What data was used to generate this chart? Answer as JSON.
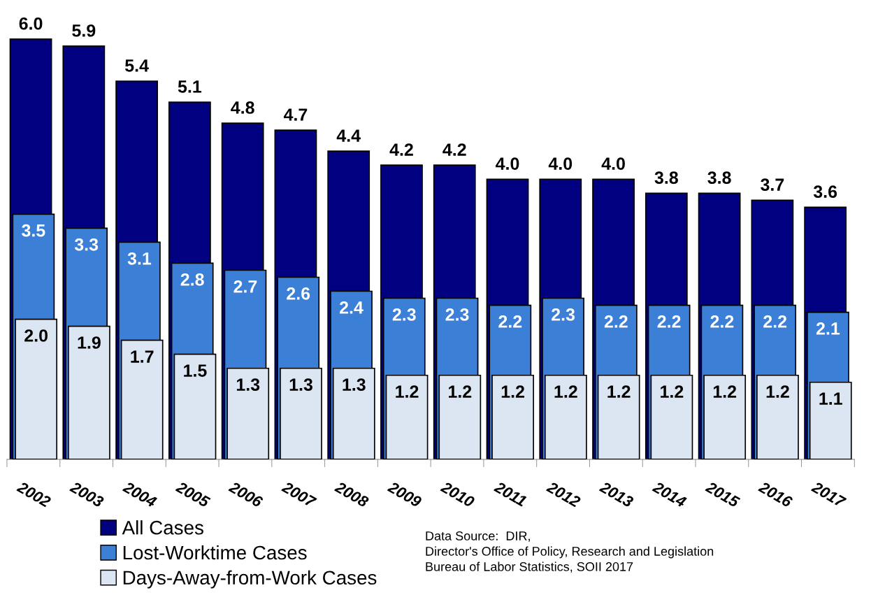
{
  "chart_data": {
    "type": "bar",
    "categories": [
      "2002",
      "2003",
      "2004",
      "2005",
      "2006",
      "2007",
      "2008",
      "2009",
      "2010",
      "2011",
      "2012",
      "2013",
      "2014",
      "2015",
      "2016",
      "2017"
    ],
    "series": [
      {
        "name": "All Cases",
        "color": "#000080",
        "values": [
          6.0,
          5.9,
          5.4,
          5.1,
          4.8,
          4.7,
          4.4,
          4.2,
          4.2,
          4.0,
          4.0,
          4.0,
          3.8,
          3.8,
          3.7,
          3.6
        ],
        "value_labels": [
          "6.0",
          "5.9",
          "5.4",
          "5.1",
          "4.8",
          "4.7",
          "4.4",
          "4.2",
          "4.2",
          "4.0",
          "4.0",
          "4.0",
          "3.8",
          "3.8",
          "3.7",
          "3.6"
        ]
      },
      {
        "name": "Lost-Worktime Cases",
        "color": "#3c7fd6",
        "values": [
          3.5,
          3.3,
          3.1,
          2.8,
          2.7,
          2.6,
          2.4,
          2.3,
          2.3,
          2.2,
          2.3,
          2.2,
          2.2,
          2.2,
          2.2,
          2.1
        ],
        "value_labels": [
          "3.5",
          "3.3",
          "3.1",
          "2.8",
          "2.7",
          "2.6",
          "2.4",
          "2.3",
          "2.3",
          "2.2",
          "2.3",
          "2.2",
          "2.2",
          "2.2",
          "2.2",
          "2.1"
        ]
      },
      {
        "name": "Days-Away-from-Work Cases",
        "color": "#dce6f2",
        "values": [
          2.0,
          1.9,
          1.7,
          1.5,
          1.3,
          1.3,
          1.3,
          1.2,
          1.2,
          1.2,
          1.2,
          1.2,
          1.2,
          1.2,
          1.2,
          1.1
        ],
        "value_labels": [
          "2.0",
          "1.9",
          "1.7",
          "1.5",
          "1.3",
          "1.3",
          "1.3",
          "1.2",
          "1.2",
          "1.2",
          "1.2",
          "1.2",
          "1.2",
          "1.2",
          "1.2",
          "1.1"
        ]
      }
    ],
    "legend": "bottom left",
    "annotations": [
      "Data Source:  DIR,",
      "Director's Office of Policy, Research and Legislation",
      "Bureau of Labor Statistics, SOII 2017"
    ]
  }
}
